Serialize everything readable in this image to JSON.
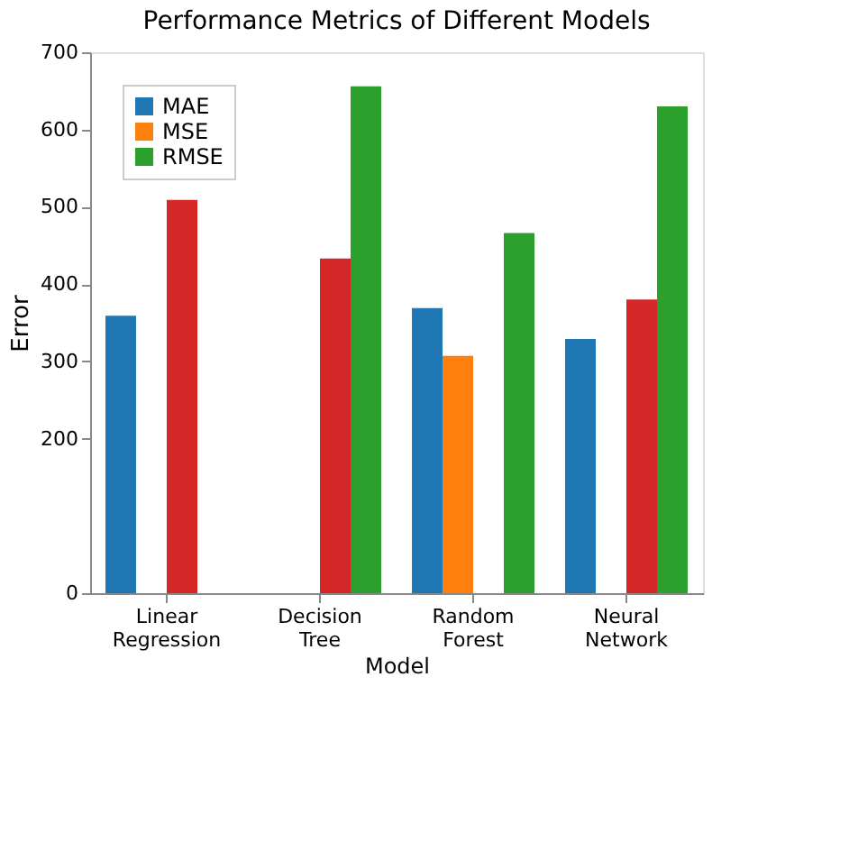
{
  "chart_data": {
    "type": "bar",
    "title": "Performance Metrics of Different Models",
    "xlabel": "Model",
    "ylabel": "Error",
    "categories": [
      "Linear Regression",
      "Decision Tree",
      "Random Forest",
      "Neural Network"
    ],
    "series": [
      {
        "name": "MAE",
        "color": "#1f77b4",
        "values": [
          359,
          null,
          369,
          329
        ]
      },
      {
        "name": "MSE",
        "color": "#ff7f0e",
        "values": [
          null,
          null,
          307,
          null
        ]
      },
      {
        "color": "#d62728",
        "values": [
          509,
          433,
          null,
          380
        ]
      },
      {
        "name": "RMSE",
        "color": "#2ca02c",
        "values": [
          null,
          656,
          466,
          630
        ]
      }
    ],
    "ylim": [
      0,
      700
    ],
    "yticks": [
      0,
      200,
      300,
      400,
      500,
      600,
      700
    ],
    "grid": false,
    "legend": "top left"
  }
}
